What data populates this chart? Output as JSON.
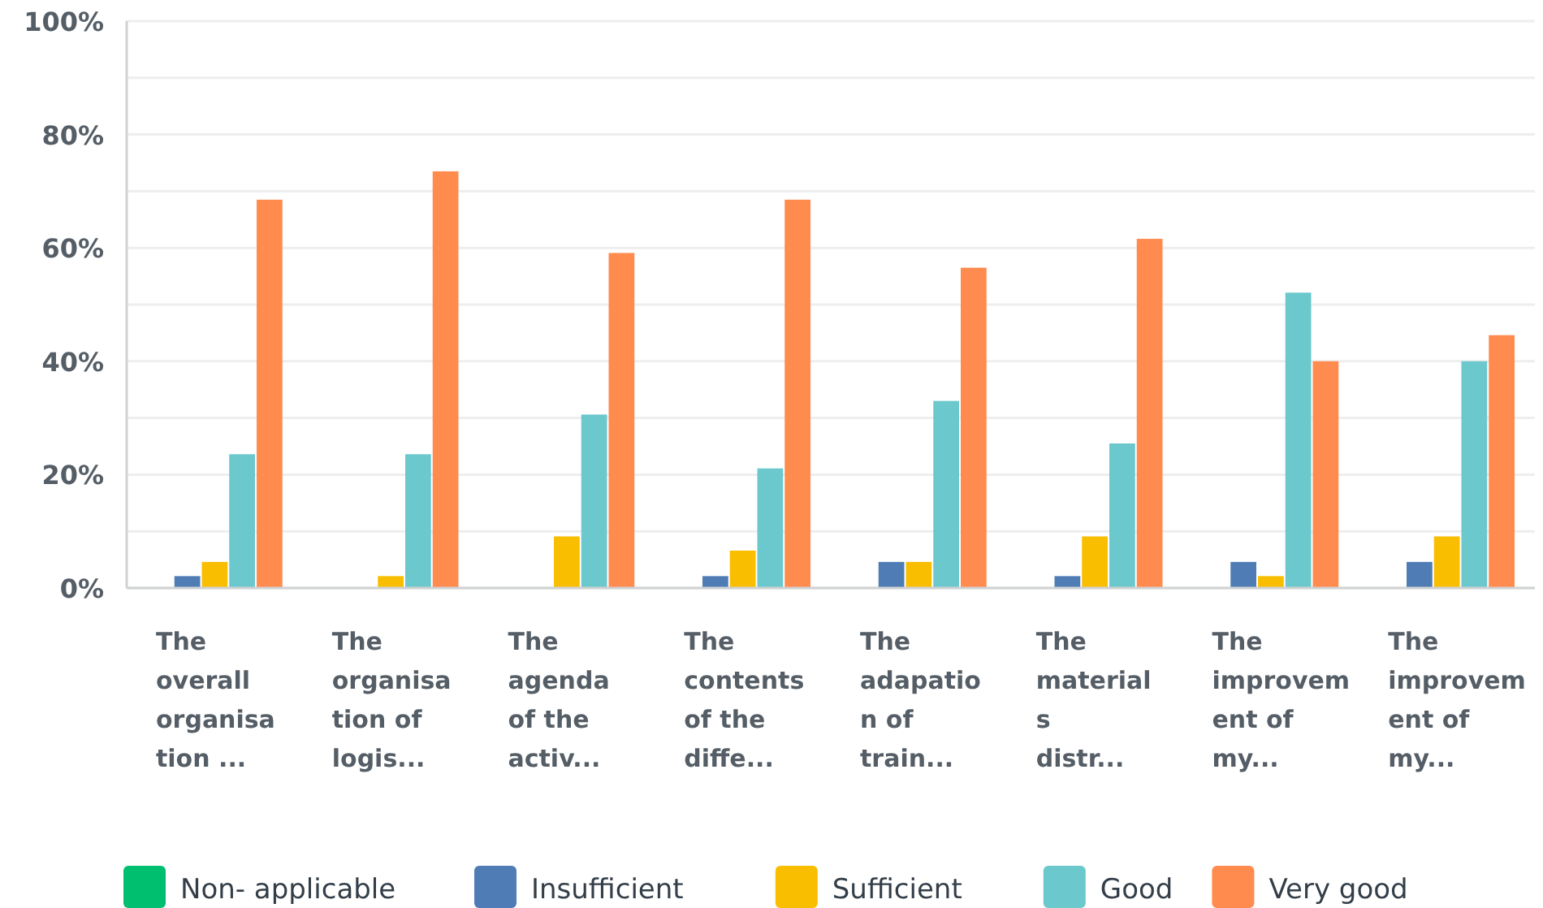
{
  "chart_data": {
    "type": "bar",
    "categories": [
      "The overall organisation ...",
      "The organisation of logis...",
      "The agenda of the activ...",
      "The contents of the diffe...",
      "The adapation of train...",
      "The materials distr...",
      "The improvement of my...",
      "The improvement of my..."
    ],
    "series": [
      {
        "name": "Non- applicable",
        "color": "#00bf6f",
        "values": [
          0,
          0,
          0,
          0,
          0,
          0,
          0,
          0
        ]
      },
      {
        "name": "Insufficient",
        "color": "#507cb6",
        "values": [
          2.1,
          0,
          0,
          2.1,
          4.6,
          2.1,
          4.6,
          4.6
        ]
      },
      {
        "name": "Sufficient",
        "color": "#f9be00",
        "values": [
          4.6,
          2.1,
          9.1,
          6.6,
          4.6,
          9.1,
          2.1,
          9.1
        ]
      },
      {
        "name": "Good",
        "color": "#6bc8cd",
        "values": [
          23.6,
          23.6,
          30.6,
          21.1,
          33.0,
          25.5,
          52.1,
          40.0
        ]
      },
      {
        "name": "Very good",
        "color": "#ff8b4f",
        "values": [
          68.5,
          73.5,
          59.1,
          68.5,
          56.5,
          61.6,
          40.0,
          44.6
        ]
      }
    ],
    "ylim": [
      0,
      100
    ],
    "yticks": [
      {
        "value": 0,
        "label": "0%"
      },
      {
        "value": 10,
        "label": null
      },
      {
        "value": 20,
        "label": "20%"
      },
      {
        "value": 30,
        "label": null
      },
      {
        "value": 40,
        "label": "40%"
      },
      {
        "value": 50,
        "label": null
      },
      {
        "value": 60,
        "label": "60%"
      },
      {
        "value": 70,
        "label": null
      },
      {
        "value": 80,
        "label": "80%"
      },
      {
        "value": 90,
        "label": null
      },
      {
        "value": 100,
        "label": "100%"
      }
    ],
    "grid": "y",
    "legend": "bottom"
  }
}
